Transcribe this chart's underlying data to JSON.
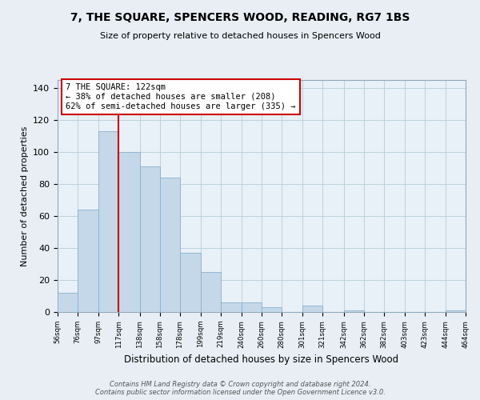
{
  "title": "7, THE SQUARE, SPENCERS WOOD, READING, RG7 1BS",
  "subtitle": "Size of property relative to detached houses in Spencers Wood",
  "xlabel": "Distribution of detached houses by size in Spencers Wood",
  "ylabel": "Number of detached properties",
  "bar_color": "#c5d8ea",
  "bar_edge_color": "#8ab0cc",
  "vline_x": 117,
  "vline_color": "#cc0000",
  "annotation_line1": "7 THE SQUARE: 122sqm",
  "annotation_line2": "← 38% of detached houses are smaller (208)",
  "annotation_line3": "62% of semi-detached houses are larger (335) →",
  "bin_edges": [
    56,
    76,
    97,
    117,
    138,
    158,
    178,
    199,
    219,
    240,
    260,
    280,
    301,
    321,
    342,
    362,
    382,
    403,
    423,
    444,
    464
  ],
  "bin_heights": [
    12,
    64,
    113,
    100,
    91,
    84,
    37,
    25,
    6,
    6,
    3,
    0,
    4,
    0,
    1,
    0,
    0,
    0,
    0,
    1
  ],
  "tick_labels": [
    "56sqm",
    "76sqm",
    "97sqm",
    "117sqm",
    "138sqm",
    "158sqm",
    "178sqm",
    "199sqm",
    "219sqm",
    "240sqm",
    "260sqm",
    "280sqm",
    "301sqm",
    "321sqm",
    "342sqm",
    "362sqm",
    "382sqm",
    "403sqm",
    "423sqm",
    "444sqm",
    "464sqm"
  ],
  "ylim": [
    0,
    145
  ],
  "yticks": [
    0,
    20,
    40,
    60,
    80,
    100,
    120,
    140
  ],
  "footer_line1": "Contains HM Land Registry data © Crown copyright and database right 2024.",
  "footer_line2": "Contains public sector information licensed under the Open Government Licence v3.0.",
  "background_color": "#e8eef4",
  "plot_bg_color": "#e8f0f8"
}
